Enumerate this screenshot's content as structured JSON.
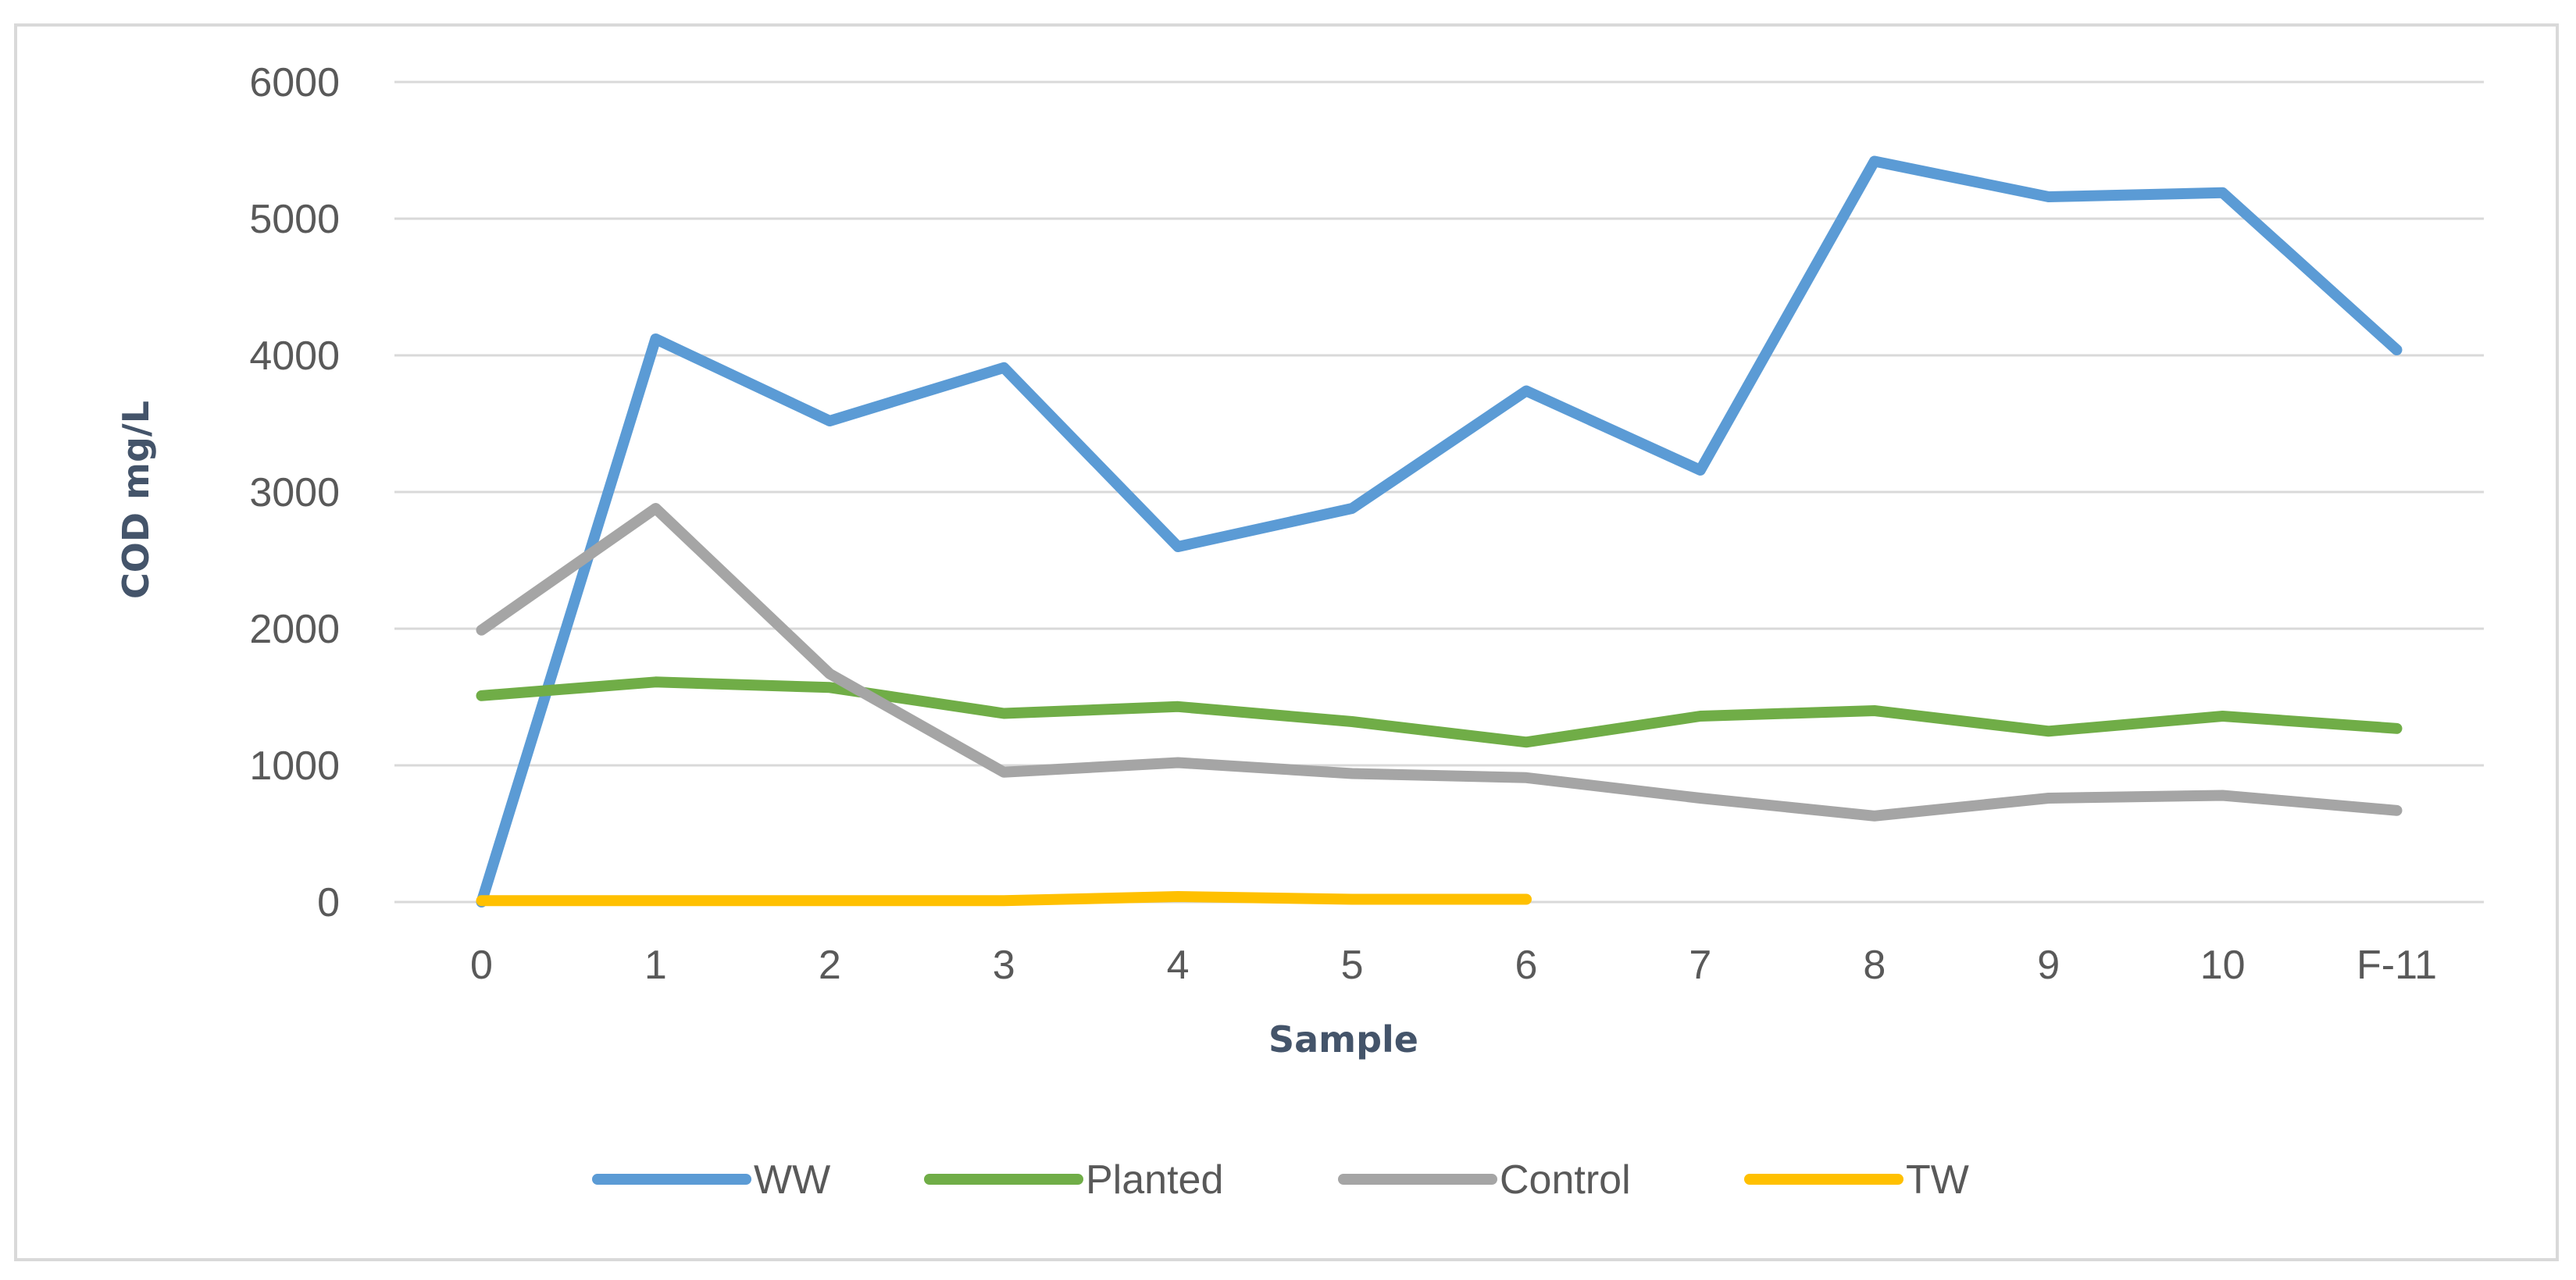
{
  "chart_data": {
    "type": "line",
    "title": "",
    "xlabel": "Sample",
    "ylabel": "COD mg/L",
    "categories": [
      "0",
      "1",
      "2",
      "3",
      "4",
      "5",
      "6",
      "7",
      "8",
      "9",
      "10",
      "F-11"
    ],
    "ylim": [
      0,
      6000
    ],
    "yticks": [
      0,
      1000,
      2000,
      3000,
      4000,
      5000,
      6000
    ],
    "grid": true,
    "legend_position": "bottom",
    "series": [
      {
        "name": "WW",
        "color": "#5b9bd5",
        "values": [
          0,
          4120,
          3520,
          3910,
          2600,
          2880,
          3740,
          3160,
          5420,
          5160,
          5190,
          4040
        ]
      },
      {
        "name": "Planted",
        "color": "#70ad47",
        "values": [
          1510,
          1610,
          1570,
          1380,
          1430,
          1320,
          1170,
          1360,
          1400,
          1250,
          1360,
          1270
        ]
      },
      {
        "name": "Control",
        "color": "#a5a5a5",
        "values": [
          1990,
          2880,
          1670,
          950,
          1020,
          940,
          910,
          760,
          630,
          760,
          780,
          670
        ]
      },
      {
        "name": "TW",
        "color": "#ffc000",
        "values": [
          10,
          10,
          10,
          10,
          40,
          20,
          20,
          null,
          null,
          null,
          null,
          null
        ]
      }
    ]
  }
}
